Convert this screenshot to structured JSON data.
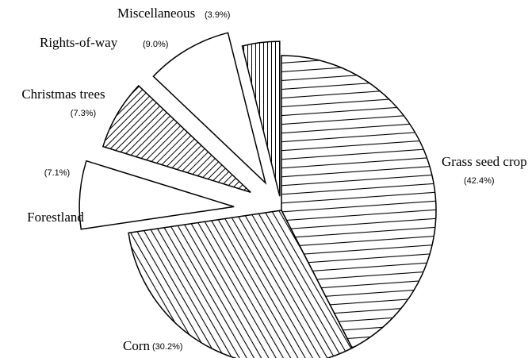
{
  "chart_data": {
    "type": "pie",
    "categories": [
      "Grass seed crop",
      "Corn",
      "Forestland",
      "Christmas trees",
      "Rights-of-way",
      "Miscellaneous"
    ],
    "values": [
      42.4,
      30.2,
      7.1,
      7.3,
      9.0,
      3.9
    ],
    "value_labels": [
      "(42.4%)",
      "(30.2%)",
      "(7.1%)",
      "(7.3%)",
      "(9.0%)",
      "(3.9%)"
    ]
  }
}
